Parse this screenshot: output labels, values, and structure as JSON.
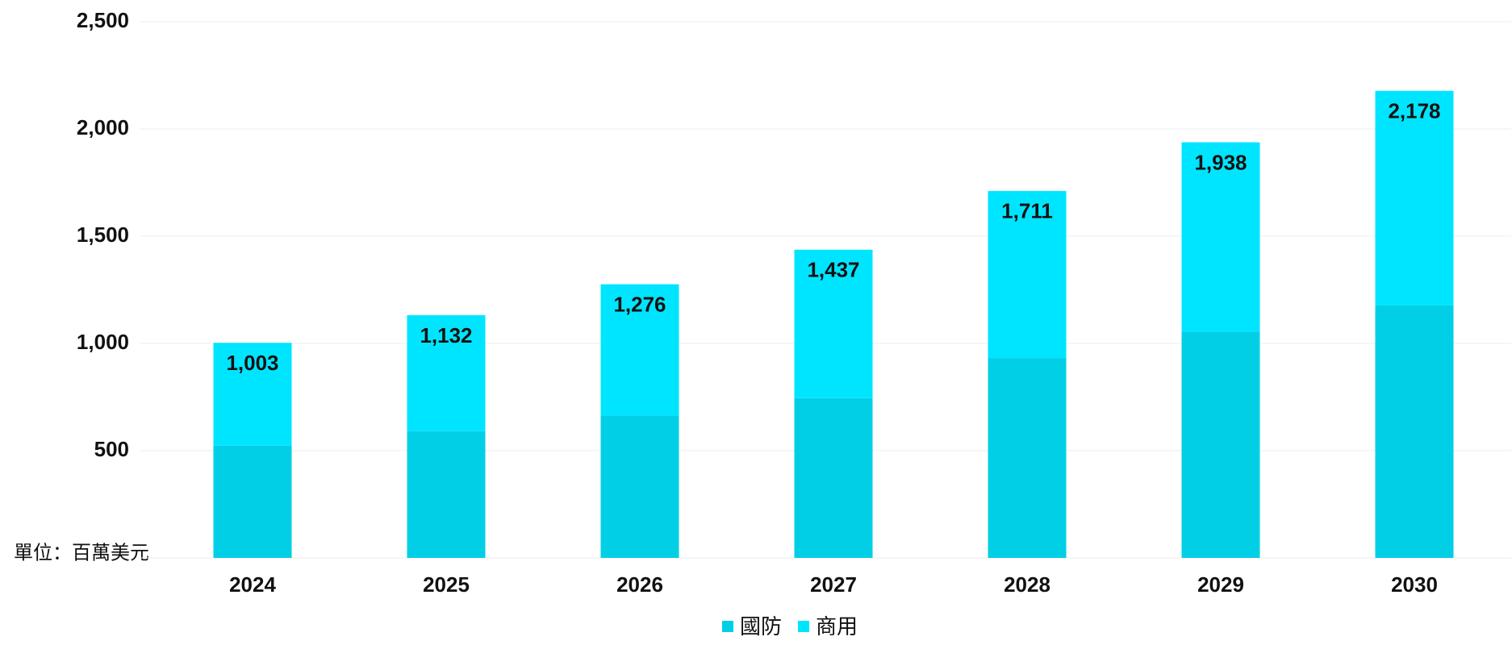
{
  "chart_data": {
    "type": "stacked_bar",
    "categories": [
      "2024",
      "2025",
      "2026",
      "2027",
      "2028",
      "2029",
      "2030"
    ],
    "series": [
      {
        "name": "國防",
        "color": "#00cfe6",
        "values": [
          523,
          591,
          664,
          745,
          932,
          1055,
          1177
        ]
      },
      {
        "name": "商用",
        "color": "#00e5ff",
        "values": [
          480,
          541,
          612,
          692,
          779,
          883,
          1001
        ]
      }
    ],
    "totals": [
      {
        "value": 1003,
        "label": "1,003"
      },
      {
        "value": 1132,
        "label": "1,132"
      },
      {
        "value": 1276,
        "label": "1,276"
      },
      {
        "value": 1437,
        "label": "1,437"
      },
      {
        "value": 1711,
        "label": "1,711"
      },
      {
        "value": 1938,
        "label": "1,938"
      },
      {
        "value": 2178,
        "label": "2,178"
      }
    ],
    "ylim": [
      0,
      2500
    ],
    "yticks": [
      {
        "value": 500,
        "label": "500"
      },
      {
        "value": 1000,
        "label": "1,000"
      },
      {
        "value": 1500,
        "label": "1,500"
      },
      {
        "value": 2000,
        "label": "2,000"
      },
      {
        "value": 2500,
        "label": "2,500"
      }
    ],
    "unit_note": "單位：百萬美元",
    "grid": true,
    "legend": "bottom"
  }
}
